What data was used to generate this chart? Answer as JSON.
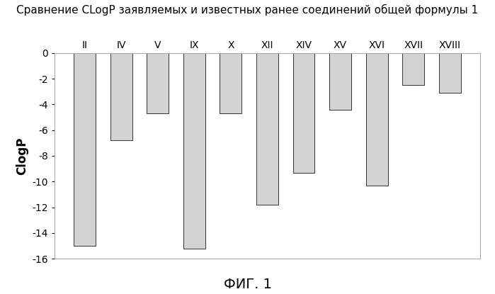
{
  "categories": [
    "II",
    "IV",
    "V",
    "IX",
    "X",
    "XII",
    "XIV",
    "XV",
    "XVI",
    "XVII",
    "XVIII"
  ],
  "values": [
    -15.0,
    -6.8,
    -4.7,
    -15.2,
    -4.7,
    -11.8,
    -9.3,
    -4.4,
    -10.3,
    -2.5,
    -3.1
  ],
  "bar_color": "#d3d3d3",
  "bar_edgecolor": "#333333",
  "title": "Сравнение CLogP заявляемых и известных ранее соединений общей формулы 1",
  "ylabel": "ClogP",
  "fig_label": "ФИГ. 1",
  "ylim": [
    -16,
    0
  ],
  "yticks": [
    0,
    -2,
    -4,
    -6,
    -8,
    -10,
    -12,
    -14,
    -16
  ],
  "title_fontsize": 11,
  "ylabel_fontsize": 12,
  "tick_fontsize": 10,
  "figlabel_fontsize": 14,
  "background_color": "#ffffff"
}
